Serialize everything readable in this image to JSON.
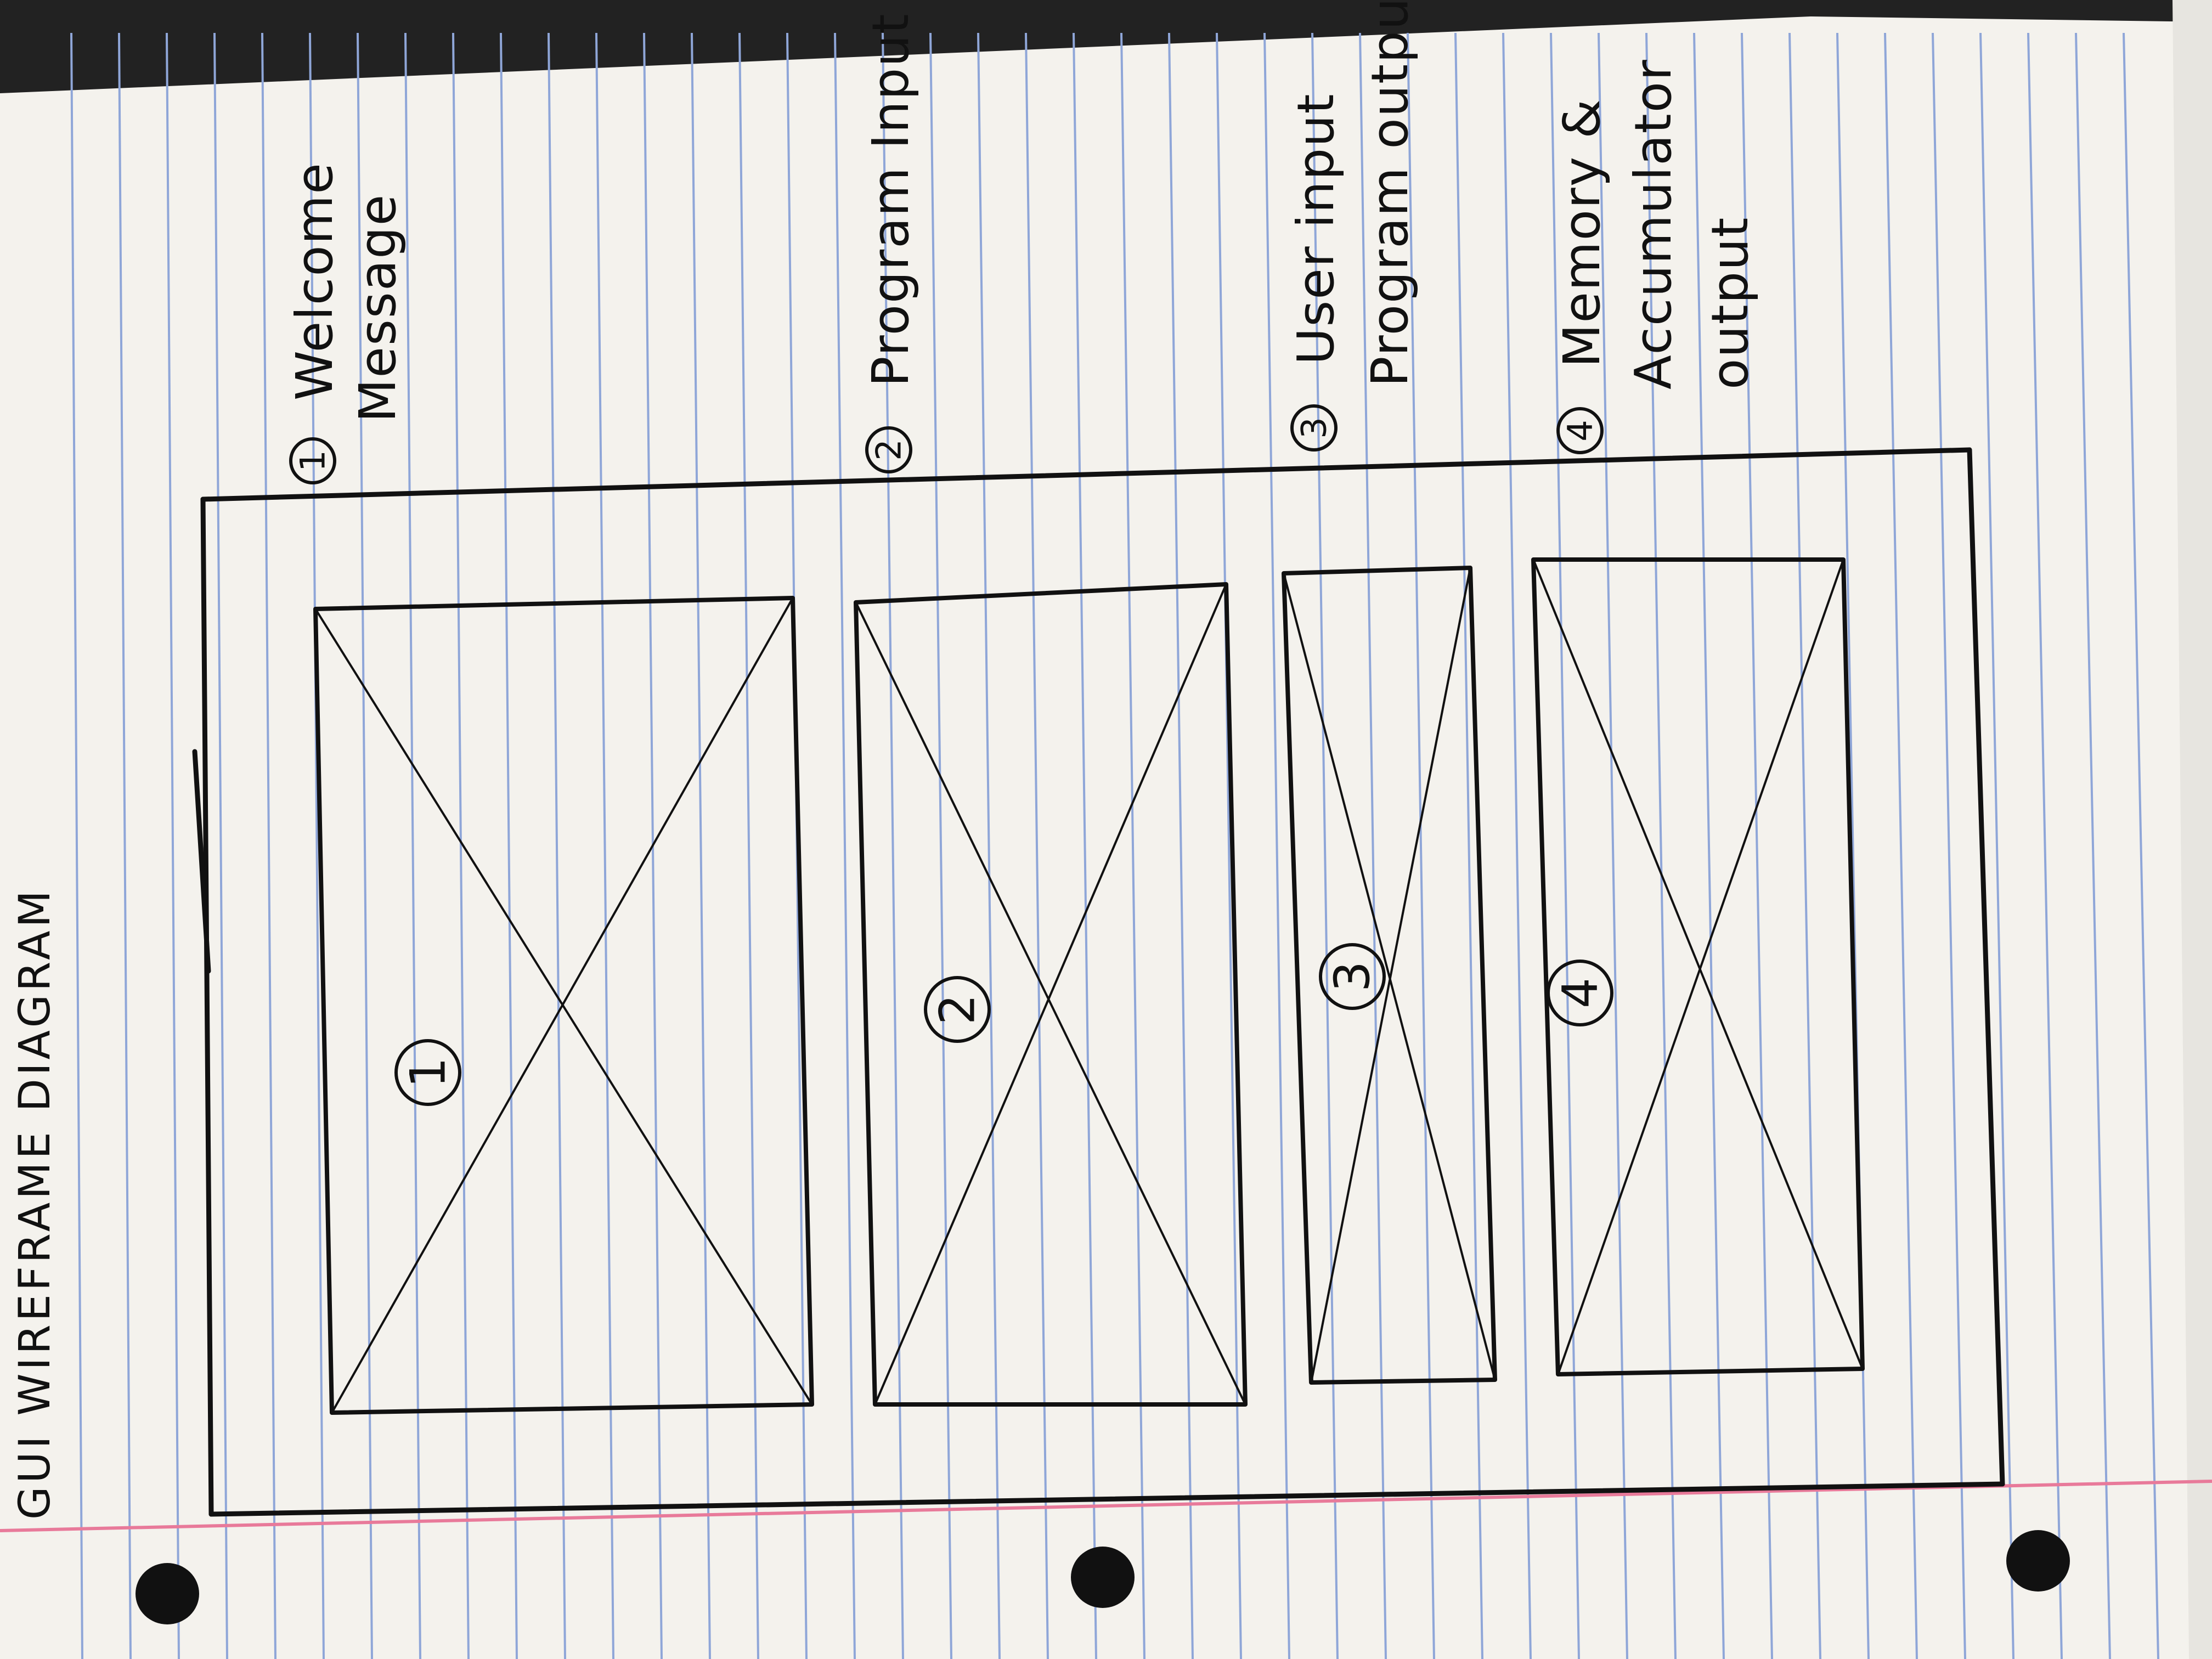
{
  "diagram": {
    "title": "GUI WIREFRAME DIAGRAM",
    "boxes": [
      {
        "number": "1"
      },
      {
        "number": "2"
      },
      {
        "number": "3"
      },
      {
        "number": "4"
      }
    ],
    "notes": [
      {
        "number": "1",
        "lines": [
          "Welcome",
          "Message"
        ]
      },
      {
        "number": "2",
        "lines": [
          "Program Input"
        ]
      },
      {
        "number": "3",
        "lines": [
          "User input",
          "Program output"
        ]
      },
      {
        "number": "4",
        "lines": [
          "Memory &",
          "Accumulator",
          "output"
        ]
      }
    ]
  },
  "colors": {
    "paper": "#f4f2ed",
    "rule_line": "#8fa6d8",
    "margin_line": "#e87a9a",
    "ink": "#111111"
  }
}
